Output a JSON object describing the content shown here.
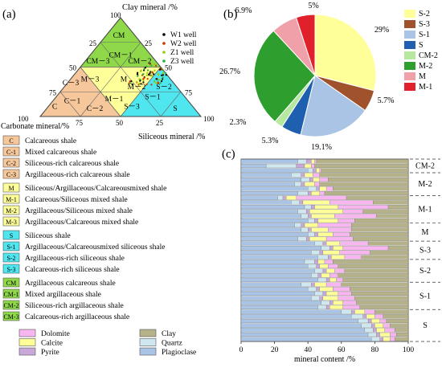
{
  "panel_labels": {
    "a": "(a)",
    "b": "(b)",
    "c": "(c)"
  },
  "colors": {
    "calcareous": "#f5c79a",
    "mixed": "#ffff9a",
    "siliceous": "#4fe6f0",
    "argillaceous": "#8fd84a",
    "grid": "#888888",
    "W1": "#000000",
    "W2": "#cc3300",
    "Z1": "#99cc00",
    "Z3": "#33aa33"
  },
  "ternary": {
    "top_label": "Clay  mineral /%",
    "left_label": "Carbonate mineral/%",
    "right_label": "Siliceous  mineral /%",
    "tick_values": [
      "25",
      "50",
      "75",
      "100"
    ],
    "apex_top": "100",
    "regions": [
      {
        "id": "CM",
        "label": "CM"
      },
      {
        "id": "CM-1",
        "label": "CM－1"
      },
      {
        "id": "CM-3",
        "label": "CM－3"
      },
      {
        "id": "CM-2",
        "label": "CM－2"
      },
      {
        "id": "M-3",
        "label": "M－3"
      },
      {
        "id": "M",
        "label": "M"
      },
      {
        "id": "M-1",
        "label": "M－1"
      },
      {
        "id": "C-3",
        "label": "C－3"
      },
      {
        "id": "C-1",
        "label": "C－1"
      },
      {
        "id": "C",
        "label": "C"
      },
      {
        "id": "C-2",
        "label": "C－2"
      },
      {
        "id": "M-2",
        "label": "M－2"
      },
      {
        "id": "S-3",
        "label": "S－3"
      },
      {
        "id": "S-1",
        "label": "S－1"
      },
      {
        "id": "S-2",
        "label": "S－2"
      },
      {
        "id": "S",
        "label": "S"
      }
    ],
    "wells": [
      {
        "name": "W1 well",
        "color": "#000000",
        "glyph": "•"
      },
      {
        "name": "W2 well",
        "color": "#cc3300",
        "glyph": "•"
      },
      {
        "name": "Z1 well",
        "color": "#99cc00",
        "glyph": "•"
      },
      {
        "name": "Z3 well",
        "color": "#33aa33",
        "glyph": "•"
      }
    ]
  },
  "pie": {
    "chart_data": {
      "type": "pie",
      "slices": [
        {
          "label": "S-2",
          "value": 29,
          "color": "#ffff99",
          "text": "29%"
        },
        {
          "label": "S-3",
          "value": 5.7,
          "color": "#a0522d",
          "text": "5.7%"
        },
        {
          "label": "S-1",
          "value": 19.1,
          "color": "#a9c4e4",
          "text": "19.1%"
        },
        {
          "label": "S",
          "value": 5.3,
          "color": "#1f5fb0",
          "text": "5.3%"
        },
        {
          "label": "CM-2",
          "value": 2.3,
          "color": "#b6e8a0",
          "text": "2.3%"
        },
        {
          "label": "M-2",
          "value": 26.7,
          "color": "#2e9e2e",
          "text": "26.7%"
        },
        {
          "label": "M",
          "value": 6.9,
          "color": "#f0a0a8",
          "text": "6.9%"
        },
        {
          "label": "M-1",
          "value": 5,
          "color": "#e0202a",
          "text": "5%"
        }
      ]
    }
  },
  "legend_a": {
    "groups": [
      {
        "color": "#f5c79a",
        "items": [
          {
            "code": "C",
            "text": "Calcareous shale"
          },
          {
            "code": "C-1",
            "text": "Mixed calcareous shale"
          },
          {
            "code": "C-2",
            "text": "Siliceous-rich calcareous shale"
          },
          {
            "code": "C-3",
            "text": "Argillaceous-rich  calcareous shale"
          }
        ]
      },
      {
        "color": "#ffff9a",
        "items": [
          {
            "code": "M",
            "text": "Siliceous/Argillaceous/Calcareousmixed shale"
          },
          {
            "code": "M-1",
            "text": "Calcareous/Siliceous mixed shale"
          },
          {
            "code": "M-2",
            "text": "Argillaceous/Siliceous mixed shale"
          },
          {
            "code": "M-3",
            "text": "Argillaceous/Calcareous mixed shale"
          }
        ]
      },
      {
        "color": "#4fe6f0",
        "items": [
          {
            "code": "S",
            "text": "Siliceous shale"
          },
          {
            "code": "S-1",
            "text": "Argillaceous/Calcareousmixed siliceous shale"
          },
          {
            "code": "S-2",
            "text": "Argillaceous-rich siliceous shale"
          },
          {
            "code": "S-3",
            "text": "Calcareous-rich siliceous shale"
          }
        ]
      },
      {
        "color": "#8fd84a",
        "items": [
          {
            "code": "CM",
            "text": "Argillaceous calcareous shale"
          },
          {
            "code": "CM-1",
            "text": "Mixed argillaceous shale"
          },
          {
            "code": "CM-2",
            "text": "Siliceous-rich argillaceous shale"
          },
          {
            "code": "CM-3",
            "text": "Calcareous-rich argillaceous shale"
          }
        ]
      }
    ],
    "minerals": [
      {
        "name": "Dolomite",
        "color": "#f7b6f0"
      },
      {
        "name": "Clay",
        "color": "#b5b28a"
      },
      {
        "name": "Calcite",
        "color": "#ffff99"
      },
      {
        "name": "Quartz",
        "color": "#cfe8f0"
      },
      {
        "name": "Pyrite",
        "color": "#c8a8d8"
      },
      {
        "name": "Plagioclase",
        "color": "#a9c4e4"
      }
    ]
  },
  "bars": {
    "chart_data": {
      "type": "bar",
      "orientation": "horizontal-stacked",
      "xlabel": "mineral  content /%",
      "xlim": [
        0,
        100
      ],
      "xticks": [
        "0",
        "20",
        "40",
        "60",
        "80",
        "100"
      ],
      "mineral_order": [
        "Plagioclase",
        "Quartz",
        "Pyrite",
        "Calcite",
        "Dolomite",
        "Clay"
      ],
      "colors": {
        "Plagioclase": "#a9c4e4",
        "Quartz": "#cfe8f0",
        "Pyrite": "#c8a8d8",
        "Calcite": "#ffff99",
        "Dolomite": "#f7b6f0",
        "Clay": "#b5b28a"
      },
      "groups": [
        {
          "label": "CM-2",
          "rows": [
            [
              34,
              5,
              3,
              2,
              1,
              55
            ],
            [
              15,
              18,
              5,
              4,
              2,
              56
            ],
            [
              40,
              3,
              2,
              2,
              1,
              52
            ]
          ]
        },
        {
          "label": "M-2",
          "rows": [
            [
              30,
              6,
              2,
              5,
              4,
              53
            ],
            [
              36,
              5,
              2,
              4,
              5,
              48
            ],
            [
              32,
              4,
              2,
              6,
              3,
              53
            ],
            [
              40,
              5,
              2,
              4,
              4,
              45
            ],
            [
              34,
              6,
              2,
              5,
              3,
              50
            ]
          ]
        },
        {
          "label": "M-1",
          "rows": [
            [
              22,
              3,
              2,
              6,
              30,
              37
            ],
            [
              30,
              5,
              2,
              16,
              26,
              21
            ],
            [
              38,
              4,
              2,
              14,
              30,
              12
            ],
            [
              34,
              5,
              2,
              20,
              12,
              27
            ],
            [
              36,
              4,
              2,
              14,
              25,
              19
            ],
            [
              40,
              4,
              2,
              12,
              10,
              32
            ]
          ]
        },
        {
          "label": "M",
          "rows": [
            [
              32,
              4,
              2,
              8,
              20,
              34
            ],
            [
              36,
              4,
              2,
              10,
              14,
              34
            ],
            [
              40,
              4,
              2,
              9,
              10,
              35
            ],
            [
              34,
              5,
              2,
              10,
              16,
              33
            ]
          ]
        },
        {
          "label": "S-3",
          "rows": [
            [
              44,
              5,
              2,
              8,
              17,
              24
            ],
            [
              48,
              5,
              2,
              6,
              27,
              12
            ],
            [
              42,
              5,
              2,
              10,
              18,
              23
            ],
            [
              46,
              6,
              2,
              8,
              10,
              28
            ]
          ]
        },
        {
          "label": "S-2",
          "rows": [
            [
              38,
              6,
              2,
              4,
              5,
              45
            ],
            [
              40,
              5,
              2,
              5,
              6,
              42
            ],
            [
              44,
              5,
              2,
              5,
              6,
              38
            ],
            [
              42,
              4,
              2,
              5,
              5,
              42
            ],
            [
              46,
              5,
              2,
              4,
              4,
              39
            ]
          ]
        },
        {
          "label": "S-1",
          "rows": [
            [
              36,
              6,
              2,
              7,
              9,
              40
            ],
            [
              40,
              5,
              2,
              8,
              10,
              35
            ],
            [
              44,
              5,
              2,
              7,
              8,
              34
            ],
            [
              42,
              5,
              2,
              9,
              10,
              32
            ],
            [
              48,
              5,
              2,
              6,
              8,
              31
            ],
            [
              46,
              5,
              2,
              8,
              10,
              29
            ]
          ]
        },
        {
          "label": "S",
          "rows": [
            [
              60,
              6,
              2,
              6,
              6,
              20
            ],
            [
              66,
              7,
              2,
              5,
              5,
              15
            ],
            [
              70,
              6,
              2,
              5,
              4,
              13
            ],
            [
              72,
              6,
              2,
              5,
              4,
              11
            ],
            [
              74,
              5,
              2,
              5,
              6,
              8
            ],
            [
              76,
              5,
              2,
              6,
              4,
              7
            ],
            [
              78,
              5,
              2,
              4,
              3,
              8
            ]
          ]
        }
      ]
    }
  }
}
